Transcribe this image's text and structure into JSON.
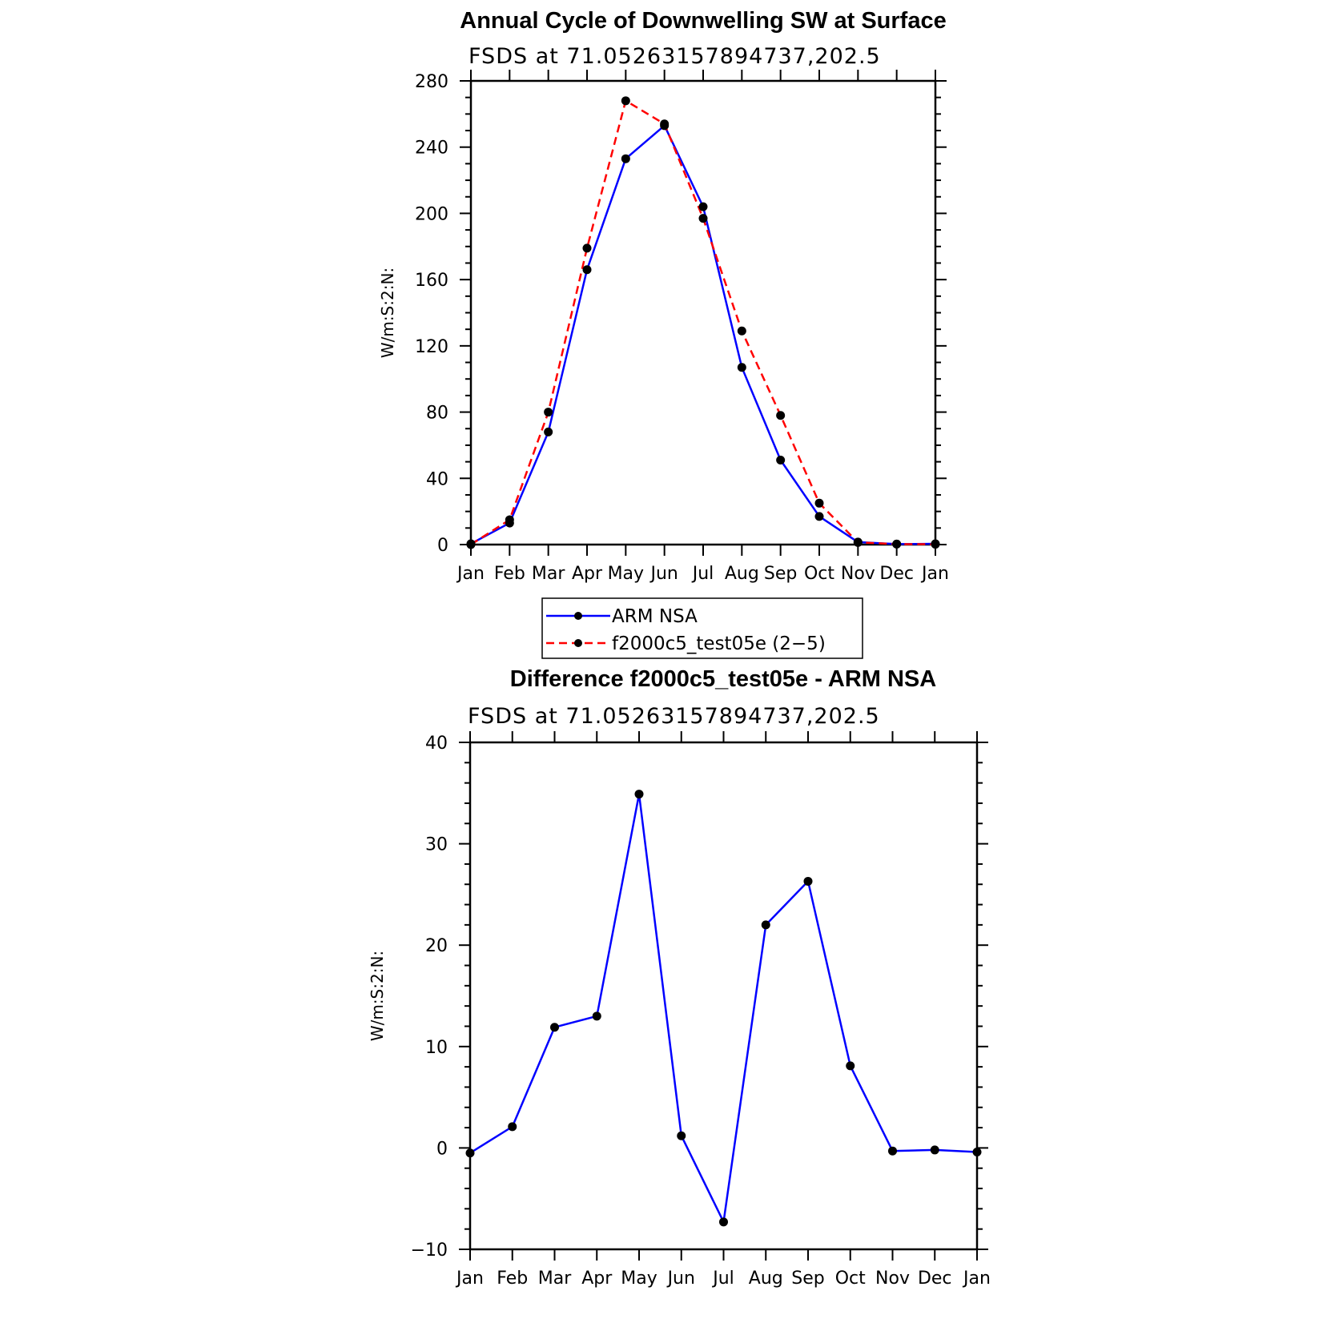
{
  "chart_data": [
    {
      "type": "line",
      "title": "Annual Cycle of Downwelling SW at Surface",
      "subtitle": "FSDS at 71.05263157894737,202.5",
      "ylabel": "W/m:S:2:N:",
      "categories": [
        "Jan",
        "Feb",
        "Mar",
        "Apr",
        "May",
        "Jun",
        "Jul",
        "Aug",
        "Sep",
        "Oct",
        "Nov",
        "Dec",
        "Jan"
      ],
      "ylim": [
        0,
        280
      ],
      "yticks": [
        0,
        40,
        80,
        120,
        160,
        200,
        240,
        280
      ],
      "grid": false,
      "legend": "below",
      "series": [
        {
          "name": "ARM NSA",
          "color": "#0000ff",
          "dash": false,
          "values": [
            0.5,
            13,
            68,
            166,
            233,
            253,
            204,
            107,
            51,
            17,
            1.5,
            0.3,
            0.5
          ]
        },
        {
          "name": "f2000c5_test05e (2−5)",
          "color": "#ff0000",
          "dash": true,
          "values": [
            0,
            15,
            80,
            179,
            268,
            254,
            197,
            129,
            78,
            25,
            1.3,
            0.3,
            0.2
          ]
        }
      ]
    },
    {
      "type": "line",
      "title": "Difference f2000c5_test05e - ARM NSA",
      "subtitle": "FSDS at 71.05263157894737,202.5",
      "ylabel": "W/m:S:2:N:",
      "categories": [
        "Jan",
        "Feb",
        "Mar",
        "Apr",
        "May",
        "Jun",
        "Jul",
        "Aug",
        "Sep",
        "Oct",
        "Nov",
        "Dec",
        "Jan"
      ],
      "ylim": [
        -10,
        40
      ],
      "yticks": [
        -10,
        0,
        10,
        20,
        30,
        40
      ],
      "grid": false,
      "series": [
        {
          "name": "",
          "color": "#0000ff",
          "dash": false,
          "values": [
            -0.5,
            2.1,
            11.9,
            13.0,
            34.9,
            1.2,
            -7.3,
            22.0,
            26.3,
            8.1,
            -0.3,
            -0.2,
            -0.4
          ]
        }
      ]
    }
  ]
}
